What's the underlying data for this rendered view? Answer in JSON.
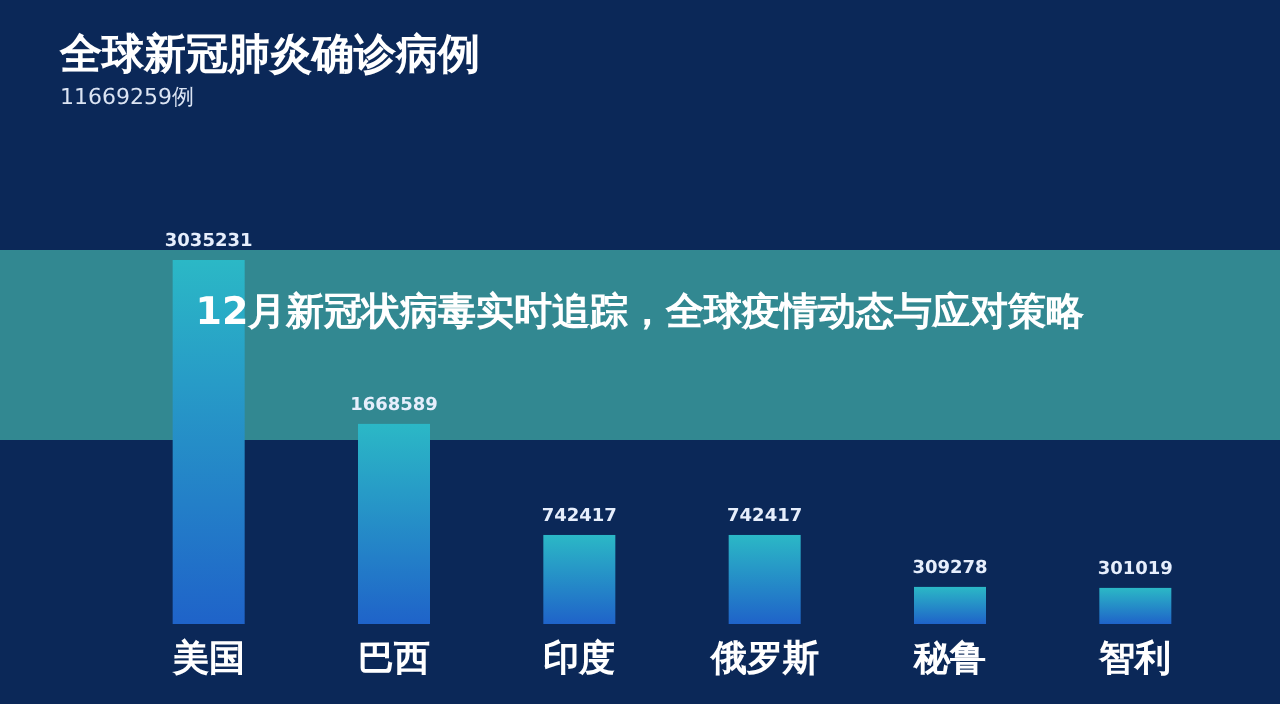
{
  "chart_data": {
    "type": "bar",
    "title": "全球新冠肺炎确诊病例",
    "subtitle": "11669259例",
    "categories": [
      "美国",
      "巴西",
      "印度",
      "俄罗斯",
      "秘鲁",
      "智利"
    ],
    "values": [
      3035231,
      1668589,
      742417,
      742417,
      309278,
      301019
    ],
    "color": "#2bb8c6",
    "data_labels": true,
    "annotations": [
      "12月新冠状病毒实时追踪，全球疫情动态与应对策略"
    ]
  }
}
